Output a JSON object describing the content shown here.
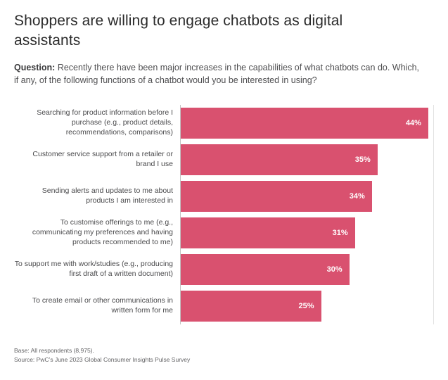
{
  "title": "Shoppers are willing to engage chatbots as digital assistants",
  "question": {
    "prefix": "Question:",
    "text": " Recently there have been major increases in the capabilities of what chatbots can do. Which, if any, of the following functions of a chatbot would you be interested in using?"
  },
  "chart_data": {
    "type": "bar",
    "orientation": "horizontal",
    "title": "Shoppers are willing to engage chatbots as digital assistants",
    "categories": [
      "Searching for product information before I purchase (e.g., product details, recommendations, comparisons)",
      "Customer service support from a retailer or brand I use",
      "Sending alerts and updates to me about products I am interested in",
      "To customise offerings to me (e.g., communicating my preferences and having products recommended to me)",
      "To support me with work/studies (e.g., producing first draft of a written document)",
      "To create email or other communications in written form for me"
    ],
    "values": [
      44,
      35,
      34,
      31,
      30,
      25
    ],
    "value_labels": [
      "44%",
      "35%",
      "34%",
      "31%",
      "30%",
      "25%"
    ],
    "xlabel": "",
    "ylabel": "",
    "xlim": [
      0,
      45
    ],
    "grid": false,
    "legend": "none",
    "bar_color": "#d9516f"
  },
  "footer": {
    "base": "Base: All respondents (8,975).",
    "source": "Source: PwC’s June 2023 Global Consumer Insights Pulse Survey"
  }
}
